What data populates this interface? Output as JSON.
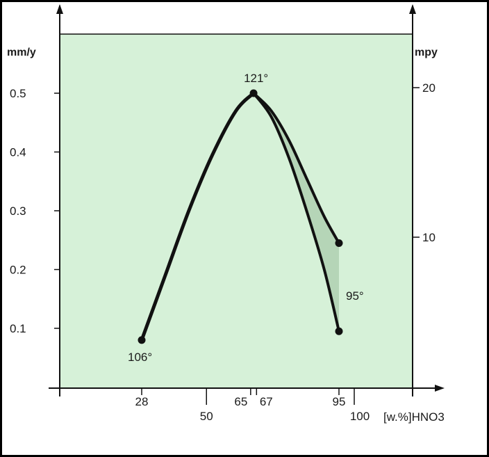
{
  "chart_data": {
    "type": "line",
    "y_left_unit": "mm/y",
    "y_right_unit": "mpy",
    "x_label": "[w.%]HNO3",
    "y_left_ticks": [
      "0.1",
      "0.2",
      "0.3",
      "0.4",
      "0.5"
    ],
    "y_left_tick_values": [
      0.1,
      0.2,
      0.3,
      0.4,
      0.5
    ],
    "y_right_ticks": [
      "10",
      "20"
    ],
    "y_right_tick_values": [
      10,
      20
    ],
    "x_ticks_upper": [
      "28",
      "65",
      "67",
      "95"
    ],
    "x_ticks_upper_values": [
      28,
      65,
      67,
      95
    ],
    "x_ticks_lower": [
      "50",
      "100"
    ],
    "x_ticks_lower_values": [
      50,
      100
    ],
    "xlim": [
      0,
      120
    ],
    "ylim": [
      0,
      0.6
    ],
    "annotations": [
      {
        "text": "106°",
        "x": 28,
        "y": 0.08
      },
      {
        "text": "121°",
        "x": 66,
        "y": 0.5
      },
      {
        "text": "95°",
        "x": 95,
        "y": 0.17
      }
    ],
    "series": [
      {
        "points": [
          [
            28,
            0.08
          ],
          [
            36,
            0.19
          ],
          [
            44,
            0.3
          ],
          [
            52,
            0.395
          ],
          [
            60,
            0.47
          ],
          [
            66,
            0.5
          ]
        ]
      },
      {
        "points": [
          [
            66,
            0.5
          ],
          [
            72,
            0.47
          ],
          [
            78,
            0.42
          ],
          [
            84,
            0.355
          ],
          [
            90,
            0.29
          ],
          [
            95,
            0.245
          ]
        ]
      },
      {
        "points": [
          [
            66,
            0.5
          ],
          [
            72,
            0.46
          ],
          [
            78,
            0.39
          ],
          [
            84,
            0.3
          ],
          [
            90,
            0.2
          ],
          [
            95,
            0.095
          ]
        ]
      }
    ],
    "markers": [
      [
        28,
        0.08
      ],
      [
        66,
        0.5
      ],
      [
        95,
        0.245
      ],
      [
        95,
        0.095
      ]
    ],
    "grid": false,
    "background": "#d6f1d8",
    "line_color": "#111111"
  }
}
